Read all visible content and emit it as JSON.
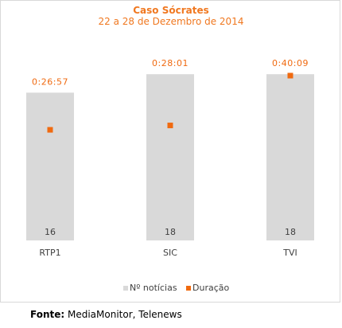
{
  "chart_data": {
    "type": "bar",
    "title": "Caso Sócrates",
    "subtitle": "22 a 28 de Dezembro de 2014",
    "categories": [
      "RTP1",
      "SIC",
      "TVI"
    ],
    "series": [
      {
        "name": "Nº notícias",
        "values": [
          16,
          18,
          18
        ],
        "color": "#d9d9d9",
        "labels": [
          "16",
          "18",
          "18"
        ]
      },
      {
        "name": "Duração",
        "values_seconds": [
          1617,
          1681,
          2409
        ],
        "labels": [
          "0:26:57",
          "0:28:01",
          "0:40:09"
        ],
        "color": "#f06a10"
      }
    ],
    "bar_ylim": [
      0,
      20
    ],
    "duration_ylim_seconds": [
      0,
      2700
    ],
    "legend_position": "bottom",
    "grid": false
  },
  "source": {
    "label": "Fonte:",
    "text": " MediaMonitor, Telenews"
  }
}
